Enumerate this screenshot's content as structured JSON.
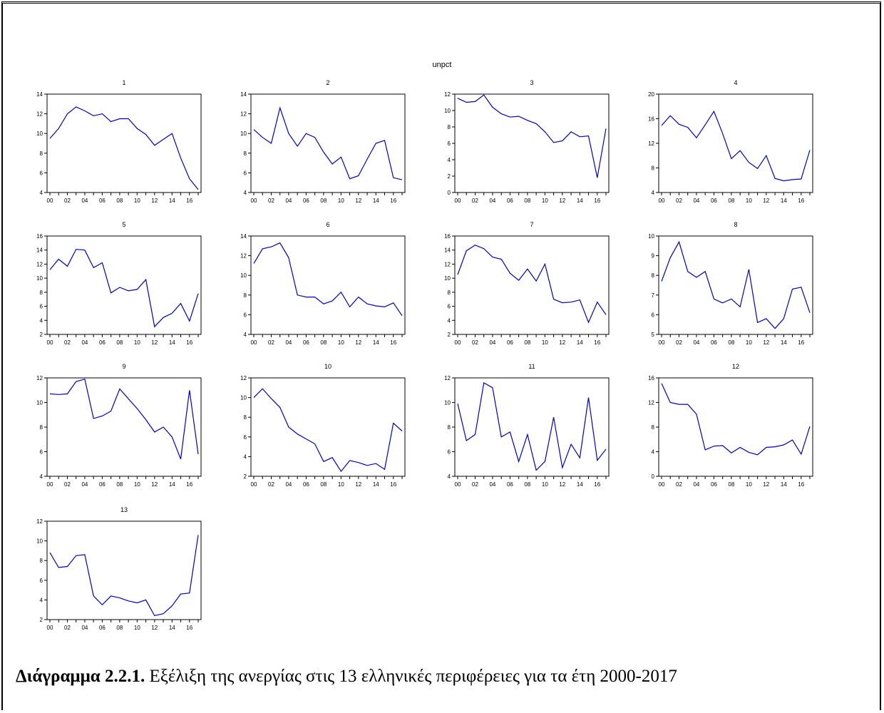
{
  "title": "unpct",
  "caption": {
    "label": "Διάγραμμα 2.2.1.",
    "text": " Εξέλιξη της ανεργίας στις 13 ελληνικές περιφέρειες για τα έτη 2000-2017"
  },
  "colors": {
    "line": "#0000cc",
    "axis": "#000000"
  },
  "chart_data": [
    {
      "type": "line",
      "title": "1",
      "x": [
        2000,
        2001,
        2002,
        2003,
        2004,
        2005,
        2006,
        2007,
        2008,
        2009,
        2010,
        2011,
        2012,
        2013,
        2014,
        2015,
        2016,
        2017
      ],
      "x_ticks": [
        "00",
        "02",
        "04",
        "06",
        "08",
        "10",
        "12",
        "14",
        "16"
      ],
      "ylim": [
        4,
        14
      ],
      "y_ticks": [
        4,
        6,
        8,
        10,
        12,
        14
      ],
      "values": [
        9.5,
        10.5,
        12.0,
        12.7,
        12.3,
        11.8,
        12.0,
        11.2,
        11.5,
        11.5,
        10.5,
        9.9,
        8.8,
        9.4,
        10.0,
        7.5,
        5.4,
        4.3
      ]
    },
    {
      "type": "line",
      "title": "2",
      "x": [
        2000,
        2001,
        2002,
        2003,
        2004,
        2005,
        2006,
        2007,
        2008,
        2009,
        2010,
        2011,
        2012,
        2013,
        2014,
        2015,
        2016,
        2017
      ],
      "x_ticks": [
        "00",
        "02",
        "04",
        "06",
        "08",
        "10",
        "12",
        "14",
        "16"
      ],
      "ylim": [
        4,
        14
      ],
      "y_ticks": [
        4,
        6,
        8,
        10,
        12,
        14
      ],
      "values": [
        10.4,
        9.6,
        9.0,
        12.6,
        10.0,
        8.7,
        10.0,
        9.6,
        8.1,
        6.9,
        7.6,
        5.4,
        5.7,
        7.4,
        9.0,
        9.3,
        5.5,
        5.3
      ]
    },
    {
      "type": "line",
      "title": "3",
      "x": [
        2000,
        2001,
        2002,
        2003,
        2004,
        2005,
        2006,
        2007,
        2008,
        2009,
        2010,
        2011,
        2012,
        2013,
        2014,
        2015,
        2016,
        2017
      ],
      "x_ticks": [
        "00",
        "02",
        "04",
        "06",
        "08",
        "10",
        "12",
        "14",
        "16"
      ],
      "ylim": [
        0,
        12
      ],
      "y_ticks": [
        0,
        2,
        4,
        6,
        8,
        10,
        12
      ],
      "values": [
        11.5,
        11.0,
        11.1,
        11.9,
        10.4,
        9.6,
        9.2,
        9.3,
        8.8,
        8.4,
        7.4,
        6.1,
        6.3,
        7.4,
        6.8,
        6.9,
        1.8,
        7.8
      ]
    },
    {
      "type": "line",
      "title": "4",
      "x": [
        2000,
        2001,
        2002,
        2003,
        2004,
        2005,
        2006,
        2007,
        2008,
        2009,
        2010,
        2011,
        2012,
        2013,
        2014,
        2015,
        2016,
        2017
      ],
      "x_ticks": [
        "00",
        "02",
        "04",
        "06",
        "08",
        "10",
        "12",
        "14",
        "16"
      ],
      "ylim": [
        4,
        20
      ],
      "y_ticks": [
        4,
        8,
        12,
        16,
        20
      ],
      "values": [
        14.9,
        16.5,
        15.1,
        14.6,
        12.9,
        15.0,
        17.2,
        13.6,
        9.5,
        10.8,
        8.9,
        7.9,
        10.0,
        6.3,
        5.9,
        6.1,
        6.2,
        10.9
      ]
    },
    {
      "type": "line",
      "title": "5",
      "x": [
        2000,
        2001,
        2002,
        2003,
        2004,
        2005,
        2006,
        2007,
        2008,
        2009,
        2010,
        2011,
        2012,
        2013,
        2014,
        2015,
        2016,
        2017
      ],
      "x_ticks": [
        "00",
        "02",
        "04",
        "06",
        "08",
        "10",
        "12",
        "14",
        "16"
      ],
      "ylim": [
        2,
        16
      ],
      "y_ticks": [
        2,
        4,
        6,
        8,
        10,
        12,
        14,
        16
      ],
      "values": [
        11.2,
        12.7,
        11.7,
        14.1,
        14.0,
        11.5,
        12.2,
        7.9,
        8.7,
        8.2,
        8.4,
        9.8,
        3.1,
        4.4,
        5.0,
        6.4,
        3.9,
        7.8
      ]
    },
    {
      "type": "line",
      "title": "6",
      "x": [
        2000,
        2001,
        2002,
        2003,
        2004,
        2005,
        2006,
        2007,
        2008,
        2009,
        2010,
        2011,
        2012,
        2013,
        2014,
        2015,
        2016,
        2017
      ],
      "x_ticks": [
        "00",
        "02",
        "04",
        "06",
        "08",
        "10",
        "12",
        "14",
        "16"
      ],
      "ylim": [
        4,
        14
      ],
      "y_ticks": [
        4,
        6,
        8,
        10,
        12,
        14
      ],
      "values": [
        11.2,
        12.7,
        12.9,
        13.3,
        11.8,
        8.0,
        7.8,
        7.8,
        7.1,
        7.4,
        8.3,
        6.8,
        7.8,
        7.1,
        6.9,
        6.8,
        7.2,
        5.9
      ]
    },
    {
      "type": "line",
      "title": "7",
      "x": [
        2000,
        2001,
        2002,
        2003,
        2004,
        2005,
        2006,
        2007,
        2008,
        2009,
        2010,
        2011,
        2012,
        2013,
        2014,
        2015,
        2016,
        2017
      ],
      "x_ticks": [
        "00",
        "02",
        "04",
        "06",
        "08",
        "10",
        "12",
        "14",
        "16"
      ],
      "ylim": [
        2,
        16
      ],
      "y_ticks": [
        2,
        4,
        6,
        8,
        10,
        12,
        14,
        16
      ],
      "values": [
        10.5,
        13.9,
        14.7,
        14.2,
        13.0,
        12.7,
        10.7,
        9.7,
        11.3,
        9.6,
        12.0,
        7.0,
        6.5,
        6.6,
        6.9,
        3.7,
        6.6,
        4.8
      ]
    },
    {
      "type": "line",
      "title": "8",
      "x": [
        2000,
        2001,
        2002,
        2003,
        2004,
        2005,
        2006,
        2007,
        2008,
        2009,
        2010,
        2011,
        2012,
        2013,
        2014,
        2015,
        2016,
        2017
      ],
      "x_ticks": [
        "00",
        "02",
        "04",
        "06",
        "08",
        "10",
        "12",
        "14",
        "16"
      ],
      "ylim": [
        5,
        10
      ],
      "y_ticks": [
        5,
        6,
        7,
        8,
        9,
        10
      ],
      "values": [
        7.7,
        8.9,
        9.7,
        8.2,
        7.9,
        8.2,
        6.8,
        6.6,
        6.8,
        6.4,
        8.3,
        5.6,
        5.8,
        5.3,
        5.8,
        7.3,
        7.4,
        6.1
      ]
    },
    {
      "type": "line",
      "title": "9",
      "x": [
        2000,
        2001,
        2002,
        2003,
        2004,
        2005,
        2006,
        2007,
        2008,
        2009,
        2010,
        2011,
        2012,
        2013,
        2014,
        2015,
        2016,
        2017
      ],
      "x_ticks": [
        "00",
        "02",
        "04",
        "06",
        "08",
        "10",
        "12",
        "14",
        "16"
      ],
      "ylim": [
        4,
        12
      ],
      "y_ticks": [
        4,
        6,
        8,
        10,
        12
      ],
      "values": [
        10.7,
        10.65,
        10.7,
        11.7,
        11.9,
        8.7,
        8.9,
        9.3,
        11.1,
        10.3,
        9.5,
        8.6,
        7.6,
        8.0,
        7.2,
        5.4,
        11.0,
        5.8
      ]
    },
    {
      "type": "line",
      "title": "10",
      "x": [
        2000,
        2001,
        2002,
        2003,
        2004,
        2005,
        2006,
        2007,
        2008,
        2009,
        2010,
        2011,
        2012,
        2013,
        2014,
        2015,
        2016,
        2017
      ],
      "x_ticks": [
        "00",
        "02",
        "04",
        "06",
        "08",
        "10",
        "12",
        "14",
        "16"
      ],
      "ylim": [
        2,
        12
      ],
      "y_ticks": [
        2,
        4,
        6,
        8,
        10,
        12
      ],
      "values": [
        10.0,
        10.9,
        9.9,
        9.0,
        7.0,
        6.3,
        5.8,
        5.3,
        3.5,
        3.9,
        2.5,
        3.6,
        3.4,
        3.1,
        3.3,
        2.7,
        7.4,
        6.6
      ]
    },
    {
      "type": "line",
      "title": "11",
      "x": [
        2000,
        2001,
        2002,
        2003,
        2004,
        2005,
        2006,
        2007,
        2008,
        2009,
        2010,
        2011,
        2012,
        2013,
        2014,
        2015,
        2016,
        2017
      ],
      "x_ticks": [
        "00",
        "02",
        "04",
        "06",
        "08",
        "10",
        "12",
        "14",
        "16"
      ],
      "ylim": [
        4,
        12
      ],
      "y_ticks": [
        4,
        6,
        8,
        10,
        12
      ],
      "values": [
        9.9,
        6.9,
        7.4,
        11.6,
        11.2,
        7.2,
        7.6,
        5.2,
        7.4,
        4.5,
        5.2,
        8.8,
        4.7,
        6.6,
        5.5,
        10.4,
        5.3,
        6.2
      ]
    },
    {
      "type": "line",
      "title": "12",
      "x": [
        2000,
        2001,
        2002,
        2003,
        2004,
        2005,
        2006,
        2007,
        2008,
        2009,
        2010,
        2011,
        2012,
        2013,
        2014,
        2015,
        2016,
        2017
      ],
      "x_ticks": [
        "00",
        "02",
        "04",
        "06",
        "08",
        "10",
        "12",
        "14",
        "16"
      ],
      "ylim": [
        0,
        16
      ],
      "y_ticks": [
        0,
        4,
        8,
        12,
        16
      ],
      "values": [
        15.1,
        12.0,
        11.7,
        11.7,
        10.1,
        4.3,
        4.9,
        5.0,
        3.8,
        4.7,
        3.9,
        3.5,
        4.7,
        4.8,
        5.1,
        5.9,
        3.6,
        8.1
      ]
    },
    {
      "type": "line",
      "title": "13",
      "x": [
        2000,
        2001,
        2002,
        2003,
        2004,
        2005,
        2006,
        2007,
        2008,
        2009,
        2010,
        2011,
        2012,
        2013,
        2014,
        2015,
        2016,
        2017
      ],
      "x_ticks": [
        "00",
        "02",
        "04",
        "06",
        "08",
        "10",
        "12",
        "14",
        "16"
      ],
      "ylim": [
        2,
        12
      ],
      "y_ticks": [
        2,
        4,
        6,
        8,
        10,
        12
      ],
      "values": [
        8.8,
        7.3,
        7.4,
        8.5,
        8.6,
        4.4,
        3.5,
        4.4,
        4.2,
        3.9,
        3.7,
        4.0,
        2.4,
        2.6,
        3.4,
        4.6,
        4.7,
        10.6
      ]
    }
  ]
}
